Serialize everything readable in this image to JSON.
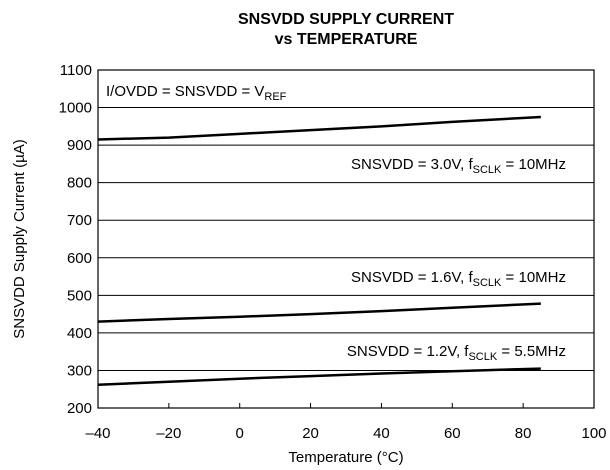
{
  "chart_data": {
    "type": "line",
    "title": [
      "SNSVDD SUPPLY CURRENT",
      "vs TEMPERATURE"
    ],
    "x_label": "Temperature (°C)",
    "y_label": "SNSVDD Supply Current (µA)",
    "x": [
      -40,
      -20,
      0,
      20,
      40,
      60,
      85
    ],
    "series": [
      {
        "color": "#000000",
        "values": [
          915,
          920,
          930,
          940,
          950,
          962,
          975
        ]
      },
      {
        "color": "#000000",
        "values": [
          430,
          437,
          443,
          450,
          458,
          467,
          478
        ]
      },
      {
        "color": "#000000",
        "values": [
          262,
          270,
          278,
          285,
          292,
          298,
          305
        ]
      }
    ],
    "annotations": [
      {
        "text": "I/OVDD = SNSVDD = V",
        "sub": "REF"
      },
      {
        "text": "SNSVDD = 3.0V, f",
        "sub": "SCLK",
        "tail": " = 10MHz"
      },
      {
        "text": "SNSVDD = 1.6V, f",
        "sub": "SCLK",
        "tail": " = 10MHz"
      },
      {
        "text": "SNSVDD = 1.2V, f",
        "sub": "SCLK",
        "tail": " = 5.5MHz"
      }
    ],
    "xlim": [
      -40,
      100
    ],
    "xticks": [
      {
        "value": -40,
        "label": "–40"
      },
      {
        "value": -20,
        "label": "–20"
      },
      0,
      20,
      40,
      60,
      80,
      100
    ],
    "ylim": [
      200,
      1100
    ],
    "yticks": [
      200,
      300,
      400,
      500,
      600,
      700,
      800,
      900,
      1000,
      1100
    ],
    "grid": true
  }
}
